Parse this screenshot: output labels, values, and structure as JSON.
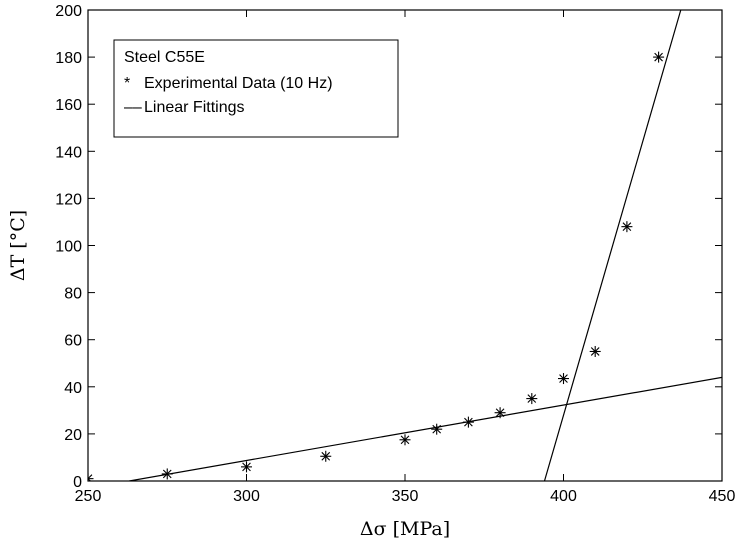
{
  "chart_data": {
    "type": "scatter",
    "xlabel": "Δσ [MPa]",
    "ylabel": "ΔT [°C]",
    "xlim": [
      250,
      450
    ],
    "ylim": [
      0,
      200
    ],
    "xticks": [
      250,
      300,
      350,
      400,
      450
    ],
    "yticks": [
      0,
      20,
      40,
      60,
      80,
      100,
      120,
      140,
      160,
      180,
      200
    ],
    "grid": false,
    "legend": {
      "placement": "top-left",
      "title": "Steel C55E",
      "entries": [
        {
          "marker": "*",
          "label": "Experimental Data (10 Hz)"
        },
        {
          "marker": "––",
          "label": "Linear Fittings"
        }
      ]
    },
    "series": [
      {
        "name": "Experimental Data (10 Hz)",
        "marker": "*",
        "points": [
          {
            "x": 250,
            "y": 1
          },
          {
            "x": 275,
            "y": 3
          },
          {
            "x": 300,
            "y": 6
          },
          {
            "x": 325,
            "y": 10.5
          },
          {
            "x": 350,
            "y": 17.5
          },
          {
            "x": 360,
            "y": 22
          },
          {
            "x": 370,
            "y": 25
          },
          {
            "x": 380,
            "y": 29
          },
          {
            "x": 390,
            "y": 35
          },
          {
            "x": 400,
            "y": 43.5
          },
          {
            "x": 410,
            "y": 55
          },
          {
            "x": 420,
            "y": 108
          },
          {
            "x": 430,
            "y": 180
          }
        ]
      },
      {
        "name": "Linear Fittings",
        "style": "line",
        "lines": [
          {
            "points": [
              {
                "x": 263,
                "y": 0
              },
              {
                "x": 450,
                "y": 44
              }
            ]
          },
          {
            "points": [
              {
                "x": 394,
                "y": 0
              },
              {
                "x": 437,
                "y": 200
              }
            ]
          }
        ]
      }
    ]
  }
}
